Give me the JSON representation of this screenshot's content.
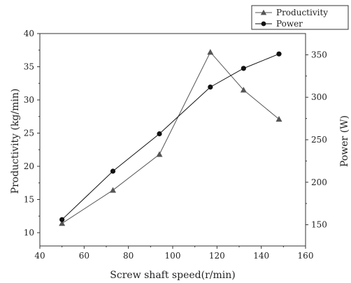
{
  "chart_data": {
    "type": "line",
    "x": [
      50,
      73,
      94,
      117,
      132,
      148
    ],
    "xlabel": "Screw shaft speed(r/min)",
    "ylabel_left": "Productivity (kg/min)",
    "ylabel_right": "Power (W)",
    "xlim": [
      40,
      160
    ],
    "ylim_left": [
      8,
      40
    ],
    "ylim_right": [
      125,
      375
    ],
    "x_ticks": [
      40,
      60,
      80,
      100,
      120,
      140,
      160
    ],
    "y_ticks_left": [
      10,
      15,
      20,
      25,
      30,
      35,
      40
    ],
    "y_ticks_right": [
      150,
      200,
      250,
      300,
      350
    ],
    "grid": false,
    "legend_position": "top-right",
    "series": [
      {
        "name": "Productivity",
        "axis": "left",
        "marker": "triangle",
        "color": "#555555",
        "values": [
          11.4,
          16.4,
          21.8,
          37.2,
          31.5,
          27.1
        ]
      },
      {
        "name": "Power",
        "axis": "right",
        "marker": "circle",
        "color": "#111111",
        "values": [
          156,
          213,
          257,
          312,
          334,
          351
        ]
      }
    ]
  }
}
